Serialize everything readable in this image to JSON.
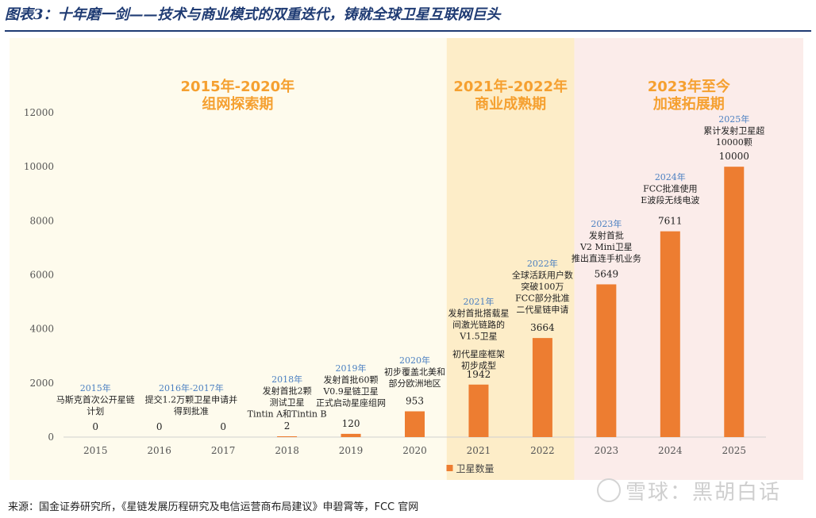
{
  "title": "图表3：十年磨一剑——技术与商业模式的双重迭代，铸就全球卫星互联网巨头",
  "source": "来源：国金证券研究所，《星链发展历程研究及电信运营商布局建议》申碧霄等，FCC 官网",
  "watermark": "雪球：黑胡白话",
  "colors": {
    "bar": "#ed7d31",
    "title": "#1f3b73",
    "year_annotation": "#4a7fc1",
    "phase_text": "#f5a030",
    "phase1_bg": "#fefbed",
    "phase2_bg": "#fdedc8",
    "phase3_bg": "#fbecea"
  },
  "chart_data": {
    "type": "bar",
    "categories": [
      "2015",
      "2016",
      "2017",
      "2018",
      "2019",
      "2020",
      "2021",
      "2022",
      "2023",
      "2024",
      "2025"
    ],
    "series": [
      {
        "name": "卫星数量",
        "values": [
          0,
          0,
          0,
          2,
          120,
          953,
          1942,
          3664,
          5649,
          7611,
          10000
        ]
      }
    ],
    "data_labels": [
      "0",
      "0",
      "0",
      "2",
      "120",
      "953",
      "1942",
      "3664",
      "5649",
      "7611",
      "10000"
    ],
    "ylim": [
      0,
      12000
    ],
    "yticks": [
      "0",
      "2000",
      "4000",
      "6000",
      "8000",
      "10000",
      "12000"
    ],
    "legend": {
      "label": "卫星数量",
      "placement": "bottom"
    },
    "phases": [
      {
        "range": "2015年-2020年",
        "name": "组网探索期"
      },
      {
        "range": "2021年-2022年",
        "name": "商业成熟期"
      },
      {
        "range": "2023年至今",
        "name": "加速拓展期"
      }
    ],
    "annotations": [
      {
        "year": "2015年",
        "lines": [
          "马斯克首次公开星链",
          "计划"
        ]
      },
      {
        "year": "2016年-2017年",
        "lines": [
          "提交1.2万颗卫星申请并",
          "得到批准"
        ]
      },
      {
        "year": "2018年",
        "lines": [
          "发射首批2颗",
          "测试卫星",
          "Tintin A和Tintin B"
        ]
      },
      {
        "year": "2019年",
        "lines": [
          "发射首批60颗",
          "V0.9星链卫星",
          "正式启动星座组网"
        ]
      },
      {
        "year": "2020年",
        "lines": [
          "初步覆盖北美和",
          "部分欧洲地区"
        ]
      },
      {
        "year": "2021年",
        "lines": [
          "发射首批搭载星",
          "间激光链路的",
          "V1.5卫星",
          "初代星座框架",
          "初步成型"
        ]
      },
      {
        "year": "2022年",
        "lines": [
          "全球活跃用户数",
          "突破100万",
          "FCC部分批准",
          "二代星链申请"
        ]
      },
      {
        "year": "2023年",
        "lines": [
          "发射首批",
          "V2 Mini卫星",
          "推出直连手机业务"
        ]
      },
      {
        "year": "2024年",
        "lines": [
          "FCC批准使用",
          "E波段无线电波"
        ]
      },
      {
        "year": "2025年",
        "lines": [
          "累计发射卫星超",
          "10000颗"
        ]
      }
    ]
  }
}
